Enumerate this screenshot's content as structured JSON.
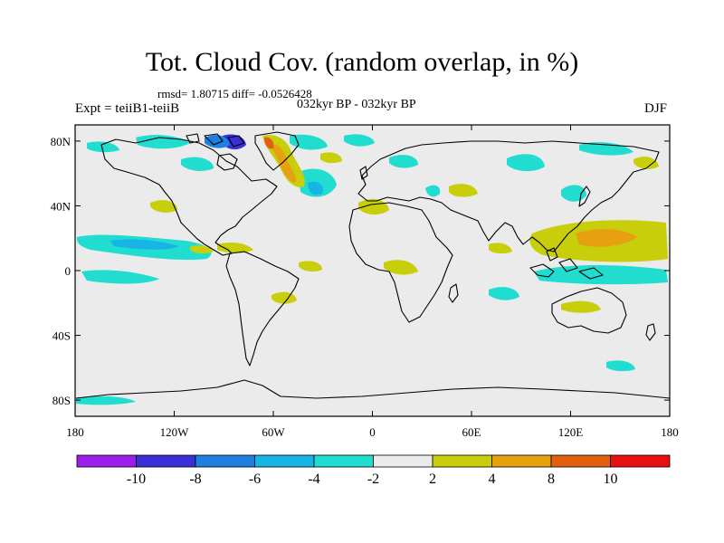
{
  "header": {
    "title": "Tot. Cloud Cov. (random overlap, in %)",
    "stats": "rmsd= 1.80715 diff= -0.0526428",
    "period": "032kyr BP - 032kyr BP",
    "expt": "Expt = teiiB1-teiiB",
    "season": "DJF"
  },
  "map": {
    "lon_ticks": [
      {
        "lon": -180,
        "label": "180"
      },
      {
        "lon": -120,
        "label": "120W"
      },
      {
        "lon": -60,
        "label": "60W"
      },
      {
        "lon": 0,
        "label": "0"
      },
      {
        "lon": 60,
        "label": "60E"
      },
      {
        "lon": 120,
        "label": "120E"
      },
      {
        "lon": 180,
        "label": "180"
      }
    ],
    "lat_ticks": [
      {
        "lat": 80,
        "label": "80N"
      },
      {
        "lat": 40,
        "label": "40N"
      },
      {
        "lat": 0,
        "label": "0"
      },
      {
        "lat": -40,
        "label": "40S"
      },
      {
        "lat": -80,
        "label": "80S"
      }
    ],
    "lon_range": [
      -180,
      180
    ],
    "lat_range": [
      -90,
      90
    ]
  },
  "colorbar": {
    "colors": [
      "#9b1fe8",
      "#3a2fd6",
      "#1f7fe0",
      "#18b4e6",
      "#20ddd0",
      "#ebebeb",
      "#c8cf0a",
      "#e6a010",
      "#e06010",
      "#e61010"
    ],
    "labels": [
      "-10",
      "-8",
      "-6",
      "-4",
      "-2",
      "2",
      "4",
      "8",
      "10"
    ]
  }
}
